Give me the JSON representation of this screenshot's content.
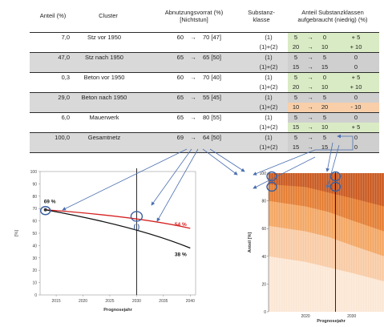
{
  "headers": {
    "share": "Anteil (%)",
    "cluster": "Cluster",
    "wear_line1": "Abnutzungsvorrat (%)",
    "wear_line2": "[Nichtstun]",
    "class_line1": "Substanz-",
    "class_line2": "klasse",
    "consumed_line1": "Anteil Substanzklassen",
    "consumed_line2": "aufgebraucht (niedrig) (%)"
  },
  "arrow": "→",
  "rows": [
    {
      "share": "7,0",
      "cluster": "Stz vor 1950",
      "wear_from": "60",
      "wear_to": "70 [47]",
      "shade": false,
      "sub": [
        {
          "cls": "(1)",
          "a": "5",
          "b": "0",
          "d": "+ 5",
          "color": "green"
        },
        {
          "cls": "(1)+(2)",
          "a": "20",
          "b": "10",
          "d": "+ 10",
          "color": "green"
        }
      ]
    },
    {
      "share": "47,0",
      "cluster": "Stz nach 1950",
      "wear_from": "65",
      "wear_to": "65 [50]",
      "shade": true,
      "sub": [
        {
          "cls": "(1)",
          "a": "5",
          "b": "5",
          "d": "0",
          "color": "gray"
        },
        {
          "cls": "(1)+(2)",
          "a": "15",
          "b": "15",
          "d": "0",
          "color": "gray"
        }
      ]
    },
    {
      "share": "0,3",
      "cluster": "Beton vor 1950",
      "wear_from": "60",
      "wear_to": "70 [40]",
      "shade": false,
      "sub": [
        {
          "cls": "(1)",
          "a": "5",
          "b": "0",
          "d": "+ 5",
          "color": "green"
        },
        {
          "cls": "(1)+(2)",
          "a": "20",
          "b": "10",
          "d": "+ 10",
          "color": "green"
        }
      ]
    },
    {
      "share": "29,0",
      "cluster": "Beton nach 1950",
      "wear_from": "65",
      "wear_to": "55 [45]",
      "shade": true,
      "sub": [
        {
          "cls": "(1)",
          "a": "5",
          "b": "5",
          "d": "0",
          "color": "gray"
        },
        {
          "cls": "(1)+(2)",
          "a": "10",
          "b": "20",
          "d": "- 10",
          "color": "orange"
        }
      ]
    },
    {
      "share": "6,0",
      "cluster": "Mauerwerk",
      "wear_from": "65",
      "wear_to": "80 [55]",
      "shade": false,
      "sub": [
        {
          "cls": "(1)",
          "a": "5",
          "b": "5",
          "d": "0",
          "color": "gray"
        },
        {
          "cls": "(1)+(2)",
          "a": "15",
          "b": "10",
          "d": "+ 5",
          "color": "green"
        }
      ]
    },
    {
      "share": "100,0",
      "cluster": "Gesamtnetz",
      "wear_from": "69",
      "wear_to": "64 [50]",
      "shade": true,
      "sub": [
        {
          "cls": "(1)",
          "a": "5",
          "b": "5",
          "d": "0",
          "color": "gray"
        },
        {
          "cls": "(1)+(2)",
          "a": "15",
          "b": "15",
          "d": "0",
          "color": "gray"
        }
      ]
    }
  ],
  "colors": {
    "green": "#d9ebc4",
    "gray": "#cfcfcf",
    "orange": "#f8cfa9",
    "row_shade": "#d9d9d9",
    "red_line": "#d62020",
    "black_line": "#111111",
    "highlight": "#3a5fa0"
  },
  "left_chart": {
    "ylabel": "[%]",
    "xlabel": "Prognosejahr",
    "y_ticks": [
      "0",
      "10",
      "20",
      "30",
      "40",
      "50",
      "60",
      "70",
      "80",
      "90",
      "100"
    ],
    "x_ticks": [
      "2015",
      "2020",
      "2025",
      "2030",
      "2035",
      "2040"
    ],
    "label_start": "69 %",
    "label_red": "54 %",
    "label_black": "38 %",
    "bracket_text": "( )"
  },
  "right_chart": {
    "ylabel": "Anteil [%]",
    "xlabel": "Prognosejahr",
    "y_ticks": [
      "0",
      "20",
      "40",
      "60",
      "80",
      "100"
    ],
    "x_ticks": [
      "2020",
      "2030"
    ]
  },
  "chart_data": [
    {
      "type": "line",
      "xlabel": "Prognosejahr",
      "ylabel": "[%]",
      "xlim": [
        2012,
        2041
      ],
      "ylim": [
        0,
        100
      ],
      "x": [
        2013,
        2030,
        2040
      ],
      "series": [
        {
          "name": "",
          "color": "#d62020",
          "values": [
            69,
            63,
            54
          ]
        },
        {
          "name": "",
          "color": "#111111",
          "values": [
            69,
            55,
            38
          ]
        }
      ]
    },
    {
      "type": "area",
      "xlabel": "Prognosejahr",
      "ylabel": "Anteil [%]",
      "xlim": [
        2012,
        2037
      ],
      "ylim": [
        0,
        100
      ],
      "x": [
        2012,
        2020,
        2025,
        2030,
        2037
      ],
      "series": [
        {
          "name": "",
          "color": "#fbe6d3",
          "values": [
            40,
            36,
            32,
            28,
            22
          ]
        },
        {
          "name": "",
          "color": "#f8c9a2",
          "values": [
            62,
            58,
            54,
            48,
            40
          ]
        },
        {
          "name": "",
          "color": "#f3a45f",
          "values": [
            80,
            76,
            72,
            66,
            58
          ]
        },
        {
          "name": "",
          "color": "#e37a2e",
          "values": [
            92,
            90,
            86,
            82,
            76
          ]
        },
        {
          "name": "",
          "color": "#c8551a",
          "values": [
            100,
            100,
            100,
            100,
            100
          ]
        }
      ]
    }
  ]
}
